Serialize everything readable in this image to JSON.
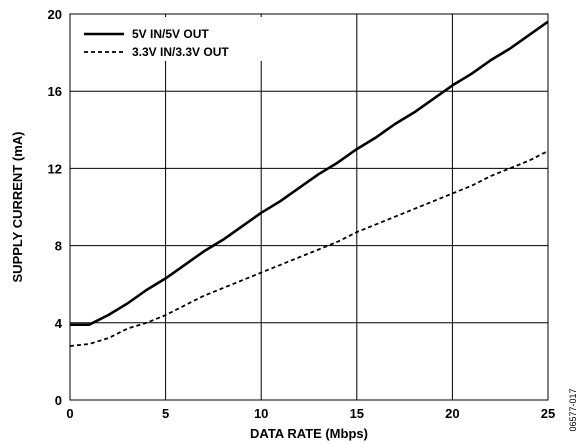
{
  "chart_data": {
    "type": "line",
    "title": "",
    "xlabel": "DATA RATE (Mbps)",
    "ylabel": "SUPPLY CURRENT (mA)",
    "xlim": [
      0,
      25
    ],
    "ylim": [
      0,
      20
    ],
    "x_ticks": [
      0,
      5,
      10,
      15,
      20,
      25
    ],
    "y_ticks": [
      0,
      4,
      8,
      12,
      16,
      20
    ],
    "grid": true,
    "legend_position": "top-left",
    "series": [
      {
        "name": "5V IN/5V OUT",
        "style": "solid",
        "x": [
          0,
          1,
          2,
          3,
          4,
          5,
          6,
          7,
          8,
          9,
          10,
          11,
          12,
          13,
          14,
          15,
          16,
          17,
          18,
          19,
          20,
          21,
          22,
          23,
          24,
          25
        ],
        "y": [
          3.9,
          3.9,
          4.4,
          5.0,
          5.7,
          6.3,
          7.0,
          7.7,
          8.3,
          9.0,
          9.7,
          10.3,
          11.0,
          11.7,
          12.3,
          13.0,
          13.6,
          14.3,
          14.9,
          15.6,
          16.3,
          16.9,
          17.6,
          18.2,
          18.9,
          19.6
        ]
      },
      {
        "name": "3.3V IN/3.3V OUT",
        "style": "dashed",
        "x": [
          0,
          1,
          2,
          3,
          4,
          5,
          6,
          7,
          8,
          9,
          10,
          11,
          12,
          13,
          14,
          15,
          16,
          17,
          18,
          19,
          20,
          21,
          22,
          23,
          24,
          25
        ],
        "y": [
          2.8,
          2.9,
          3.2,
          3.7,
          4.0,
          4.4,
          4.9,
          5.4,
          5.8,
          6.2,
          6.6,
          7.0,
          7.4,
          7.8,
          8.2,
          8.7,
          9.1,
          9.5,
          9.9,
          10.3,
          10.7,
          11.1,
          11.6,
          12.0,
          12.4,
          12.9
        ]
      }
    ]
  },
  "figure_id": "06577-017"
}
